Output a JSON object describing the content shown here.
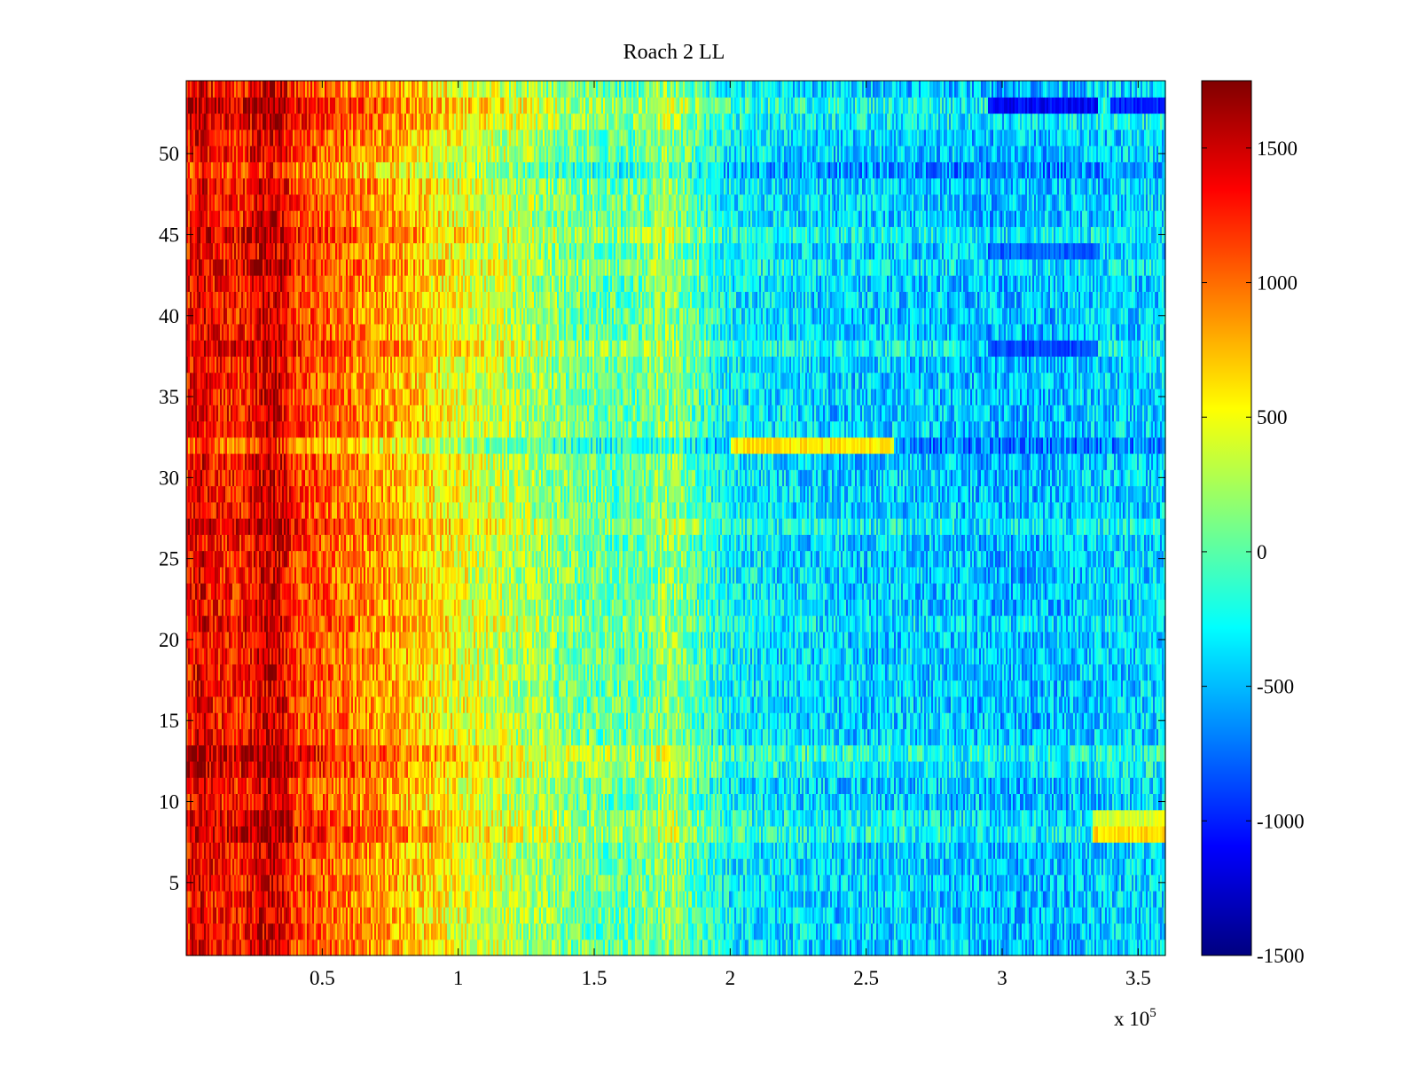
{
  "chart_data": {
    "type": "heatmap",
    "title": "Roach 2 LL",
    "xlabel": "",
    "ylabel": "",
    "xlim": [
      0,
      360000
    ],
    "ylim": [
      0.5,
      54.5
    ],
    "x_ticks": [
      50000,
      100000,
      150000,
      200000,
      250000,
      300000,
      350000
    ],
    "x_tick_labels": [
      "0.5",
      "1",
      "1.5",
      "2",
      "2.5",
      "3",
      "3.5"
    ],
    "x_exponent_label": "x 10",
    "x_exponent_power": "5",
    "y_ticks": [
      5,
      10,
      15,
      20,
      25,
      30,
      35,
      40,
      45,
      50
    ],
    "y_tick_labels": [
      "5",
      "10",
      "15",
      "20",
      "25",
      "30",
      "35",
      "40",
      "45",
      "50"
    ],
    "rows": 54,
    "colorbar": {
      "colormap": "jet",
      "clim": [
        -1500,
        1750
      ],
      "ticks": [
        -1500,
        -1000,
        -500,
        0,
        500,
        1000,
        1500
      ],
      "tick_labels": [
        "-1500",
        "-1000",
        "-500",
        "0",
        "500",
        "1000",
        "1500"
      ]
    },
    "column_profile": {
      "x": [
        0,
        5000,
        10000,
        20000,
        30000,
        35000,
        40000,
        50000,
        60000,
        70000,
        80000,
        90000,
        100000,
        110000,
        120000,
        130000,
        140000,
        150000,
        160000,
        170000,
        175000,
        180000,
        185000,
        190000,
        200000,
        220000,
        240000,
        260000,
        280000,
        300000,
        320000,
        340000,
        360000
      ],
      "mean": [
        1250,
        1450,
        1300,
        1250,
        1500,
        1450,
        1150,
        1050,
        950,
        850,
        750,
        600,
        480,
        380,
        300,
        200,
        100,
        40,
        0,
        60,
        180,
        150,
        20,
        -100,
        -300,
        -380,
        -430,
        -420,
        -440,
        -500,
        -480,
        -420,
        -400
      ]
    },
    "row_offsets": [
      {
        "row": 8,
        "offset": 200
      },
      {
        "row": 9,
        "offset": 120
      },
      {
        "row": 12,
        "offset": 150
      },
      {
        "row": 13,
        "offset": 250
      },
      {
        "row": 21,
        "offset": 80
      },
      {
        "row": 27,
        "offset": 150
      },
      {
        "row": 32,
        "offset": -250
      },
      {
        "row": 38,
        "offset": 150
      },
      {
        "row": 43,
        "offset": 100
      },
      {
        "row": 45,
        "offset": 150
      },
      {
        "row": 49,
        "offset": -200
      },
      {
        "row": 52,
        "offset": 120
      },
      {
        "row": 53,
        "offset": 200
      }
    ],
    "features": [
      {
        "row": 32,
        "x_range": [
          200000,
          260000
        ],
        "value": 600
      },
      {
        "row": 8,
        "x_range": [
          333000,
          360000
        ],
        "value": 650
      },
      {
        "row": 9,
        "x_range": [
          333000,
          360000
        ],
        "value": 400
      },
      {
        "row": 53,
        "x_range": [
          295000,
          335000
        ],
        "value": -1100
      },
      {
        "row": 53,
        "x_range": [
          340000,
          360000
        ],
        "value": -1000
      },
      {
        "row": 44,
        "x_range": [
          295000,
          335000
        ],
        "value": -800
      },
      {
        "row": 38,
        "x_range": [
          295000,
          335000
        ],
        "value": -850
      }
    ]
  }
}
